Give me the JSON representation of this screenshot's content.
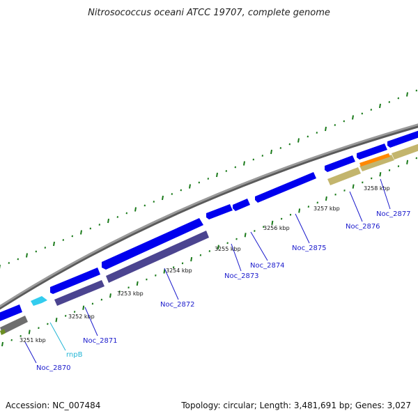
{
  "title": "Nitrosococcus oceani ATCC 19707, complete genome",
  "footer": {
    "accession": "Accession: NC_007484",
    "summary": "Topology: circular; Length: 3,481,691 bp; Genes: 3,027"
  },
  "colors": {
    "backbone": "#8a8a8a",
    "cds": "#0000ee",
    "rna": "#33ccee",
    "cog_purple": "#4b4490",
    "cog_gray": "#6e6e6e",
    "cog_tan": "#c3b56d",
    "cog_orange": "#ff8800",
    "gc_tick": "#1a7a1a",
    "locus_label": "#1a1acc",
    "rna_label": "#22b5d5"
  },
  "scale_labels": [
    "3251 kbp",
    "3252 kbp",
    "3253 kbp",
    "3254 kbp",
    "3255 kbp",
    "3256 kbp",
    "3257 kbp",
    "3258 kbp"
  ],
  "gene_labels": [
    {
      "text": "Noc_2870",
      "kind": "cds"
    },
    {
      "text": "rnpB",
      "kind": "rna"
    },
    {
      "text": "Noc_2871",
      "kind": "cds"
    },
    {
      "text": "Noc_2872",
      "kind": "cds"
    },
    {
      "text": "Noc_2873",
      "kind": "cds"
    },
    {
      "text": "Noc_2874",
      "kind": "cds"
    },
    {
      "text": "Noc_2875",
      "kind": "cds"
    },
    {
      "text": "Noc_2876",
      "kind": "cds"
    },
    {
      "text": "Noc_2877",
      "kind": "cds"
    }
  ],
  "icons": [
    "gene-arrow-icon",
    "scale-tick-icon"
  ]
}
